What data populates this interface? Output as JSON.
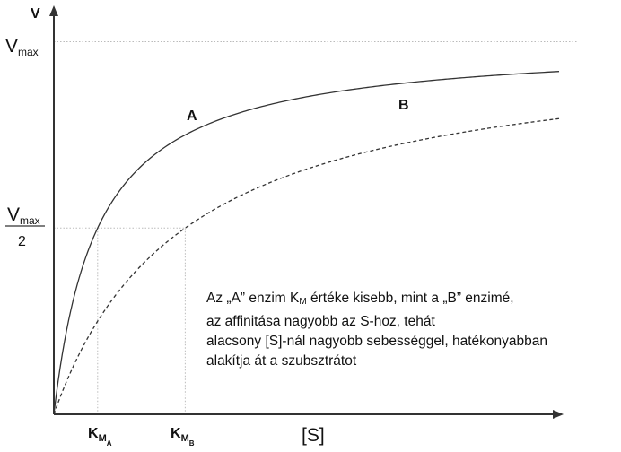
{
  "chart_data": {
    "type": "line",
    "title": "",
    "y_axis_label": "V",
    "x_axis_label": "[S]",
    "vmax_label": {
      "main": "V",
      "sub": "max"
    },
    "half_vmax_label": {
      "num_main": "V",
      "num_sub": "max",
      "den": "2"
    },
    "km_labels": [
      {
        "main": "K",
        "sub1": "M",
        "sub2": "A"
      },
      {
        "main": "K",
        "sub1": "M",
        "sub2": "B"
      }
    ],
    "xlim": [
      0,
      15
    ],
    "ylim": [
      0,
      1.1
    ],
    "vmax": 1,
    "series": [
      {
        "name": "A",
        "km": 1.3,
        "style": "solid",
        "color": "#333333"
      },
      {
        "name": "B",
        "km": 3.9,
        "style": "dashed",
        "color": "#333333"
      }
    ]
  },
  "annotation": {
    "line1_pre": "Az „A” enzim K",
    "line1_sub": "M",
    "line1_post": " értéke kisebb, mint a „B” enzimé,",
    "line2": "az affinitása nagyobb az S-hoz, tehát",
    "line3": "alacsony [S]-nál nagyobb sebességgel, hatékonyabban",
    "line4": "alakítja át a szubsztrátot"
  }
}
